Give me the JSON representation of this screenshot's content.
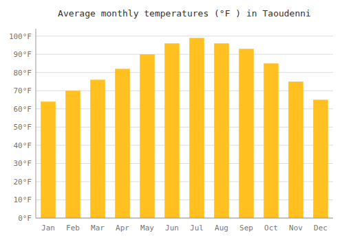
{
  "chart_data": {
    "type": "bar",
    "title": "Average monthly temperatures (°F ) in Taoudenni",
    "categories": [
      "Jan",
      "Feb",
      "Mar",
      "Apr",
      "May",
      "Jun",
      "Jul",
      "Aug",
      "Sep",
      "Oct",
      "Nov",
      "Dec"
    ],
    "values": [
      64,
      70,
      76,
      82,
      90,
      96,
      99,
      96,
      93,
      85,
      75,
      65
    ],
    "color": "#FFC020",
    "ylim": [
      0,
      104
    ],
    "yticks": [
      {
        "value": 0,
        "label": "0°F"
      },
      {
        "value": 10,
        "label": "10°F"
      },
      {
        "value": 20,
        "label": "20°F"
      },
      {
        "value": 30,
        "label": "30°F"
      },
      {
        "value": 40,
        "label": "40°F"
      },
      {
        "value": 50,
        "label": "50°F"
      },
      {
        "value": 60,
        "label": "60°F"
      },
      {
        "value": 70,
        "label": "70°F"
      },
      {
        "value": 80,
        "label": "80°F"
      },
      {
        "value": 90,
        "label": "90°F"
      },
      {
        "value": 100,
        "label": "100°F"
      }
    ],
    "grid": true
  }
}
